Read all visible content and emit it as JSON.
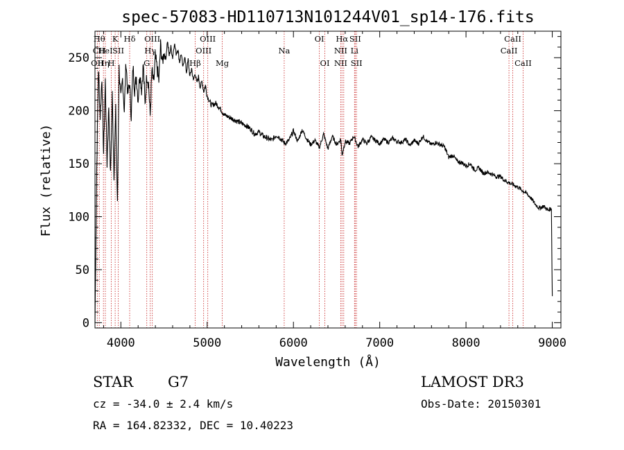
{
  "chart_data": {
    "type": "line",
    "title": "spec-57083-HD110713N101244V01_sp14-176.fits",
    "xlabel": "Wavelength (Å)",
    "ylabel": "Flux (relative)",
    "xlim": [
      3700,
      9100
    ],
    "ylim": [
      -5,
      275
    ],
    "xticks": [
      4000,
      5000,
      6000,
      7000,
      8000,
      9000
    ],
    "yticks": [
      0,
      50,
      100,
      150,
      200,
      250
    ],
    "series": [
      {
        "name": "flux",
        "x": [
          3700,
          3720,
          3740,
          3760,
          3780,
          3800,
          3820,
          3840,
          3860,
          3880,
          3900,
          3920,
          3940,
          3960,
          3980,
          4000,
          4020,
          4040,
          4060,
          4080,
          4100,
          4120,
          4140,
          4160,
          4180,
          4200,
          4220,
          4240,
          4260,
          4280,
          4300,
          4320,
          4340,
          4360,
          4380,
          4400,
          4420,
          4440,
          4460,
          4480,
          4500,
          4520,
          4540,
          4560,
          4580,
          4600,
          4620,
          4640,
          4660,
          4680,
          4700,
          4720,
          4740,
          4760,
          4780,
          4800,
          4820,
          4840,
          4860,
          4880,
          4900,
          4920,
          4940,
          4960,
          4980,
          5000,
          5050,
          5100,
          5150,
          5200,
          5250,
          5300,
          5350,
          5400,
          5450,
          5500,
          5550,
          5600,
          5650,
          5700,
          5750,
          5800,
          5850,
          5900,
          5950,
          6000,
          6050,
          6100,
          6150,
          6200,
          6250,
          6300,
          6350,
          6400,
          6450,
          6500,
          6550,
          6563,
          6600,
          6650,
          6700,
          6750,
          6800,
          6850,
          6900,
          6950,
          7000,
          7050,
          7100,
          7150,
          7200,
          7250,
          7300,
          7350,
          7400,
          7450,
          7500,
          7550,
          7600,
          7650,
          7700,
          7750,
          7800,
          7850,
          7900,
          7950,
          8000,
          8050,
          8100,
          8150,
          8200,
          8250,
          8300,
          8350,
          8400,
          8450,
          8500,
          8550,
          8600,
          8650,
          8700,
          8750,
          8800,
          8850,
          8900,
          8950,
          8990,
          9000
        ],
        "y": [
          0,
          145,
          240,
          195,
          232,
          160,
          228,
          150,
          205,
          138,
          215,
          140,
          200,
          110,
          240,
          210,
          230,
          200,
          247,
          215,
          226,
          195,
          242,
          220,
          232,
          210,
          236,
          220,
          244,
          205,
          234,
          226,
          195,
          238,
          225,
          250,
          240,
          228,
          262,
          245,
          255,
          248,
          266,
          252,
          260,
          250,
          264,
          254,
          258,
          246,
          254,
          240,
          252,
          236,
          248,
          232,
          240,
          228,
          236,
          226,
          232,
          222,
          228,
          218,
          224,
          214,
          205,
          207,
          202,
          196,
          194,
          192,
          190,
          188,
          186,
          183,
          178,
          180,
          176,
          174,
          172,
          177,
          174,
          169,
          172,
          181,
          171,
          182,
          174,
          168,
          172,
          165,
          178,
          164,
          176,
          168,
          173,
          158,
          171,
          169,
          176,
          166,
          173,
          169,
          175,
          172,
          169,
          173,
          170,
          174,
          171,
          170,
          173,
          167,
          172,
          169,
          176,
          171,
          168,
          170,
          168,
          166,
          156,
          158,
          152,
          151,
          148,
          150,
          144,
          146,
          141,
          142,
          140,
          138,
          138,
          134,
          132,
          130,
          128,
          125,
          122,
          118,
          112,
          108,
          110,
          106,
          108,
          25
        ],
        "color": "#000000"
      }
    ],
    "lines": [
      {
        "x": 3727,
        "labels": [
          {
            "text": "OII",
            "row": 2
          }
        ]
      },
      {
        "x": 3750,
        "labels": [
          {
            "text": "Hθ",
            "row": 0
          },
          {
            "text": "CH",
            "row": 1
          }
        ]
      },
      {
        "x": 3798,
        "labels": [
          {
            "text": "Hη",
            "row": 2
          }
        ]
      },
      {
        "x": 3820,
        "labels": [
          {
            "text": "HeI",
            "row": 1
          }
        ]
      },
      {
        "x": 3889,
        "labels": [
          {
            "text": "H",
            "row": 2
          }
        ]
      },
      {
        "x": 3934,
        "labels": [
          {
            "text": "K",
            "row": 0
          }
        ]
      },
      {
        "x": 3970,
        "labels": [
          {
            "text": "SII",
            "row": 1
          }
        ]
      },
      {
        "x": 4102,
        "labels": [
          {
            "text": "Hδ",
            "row": 0
          }
        ]
      },
      {
        "x": 4300,
        "labels": [
          {
            "text": "G",
            "row": 2
          }
        ]
      },
      {
        "x": 4340,
        "labels": [
          {
            "text": "Hγ",
            "row": 1
          }
        ]
      },
      {
        "x": 4364,
        "labels": [
          {
            "text": "OIII",
            "row": 0
          }
        ]
      },
      {
        "x": 4861,
        "labels": [
          {
            "text": "Hβ",
            "row": 2
          }
        ]
      },
      {
        "x": 4959,
        "labels": [
          {
            "text": "OIII",
            "row": 1
          }
        ]
      },
      {
        "x": 5007,
        "labels": [
          {
            "text": "OIII",
            "row": 0
          }
        ]
      },
      {
        "x": 5175,
        "labels": [
          {
            "text": "Mg",
            "row": 2
          }
        ]
      },
      {
        "x": 5893,
        "labels": [
          {
            "text": "Na",
            "row": 1
          }
        ]
      },
      {
        "x": 6300,
        "labels": [
          {
            "text": "OI",
            "row": 0
          }
        ]
      },
      {
        "x": 6364,
        "labels": [
          {
            "text": "OI",
            "row": 2
          }
        ]
      },
      {
        "x": 6548,
        "labels": [
          {
            "text": "NII",
            "row": 1
          },
          {
            "text": "NII",
            "row": 2
          }
        ]
      },
      {
        "x": 6563,
        "labels": [
          {
            "text": "Hα",
            "row": 0
          }
        ]
      },
      {
        "x": 6583,
        "labels": []
      },
      {
        "x": 6708,
        "labels": [
          {
            "text": "Li",
            "row": 1
          }
        ]
      },
      {
        "x": 6716,
        "labels": [
          {
            "text": "SII",
            "row": 0
          }
        ]
      },
      {
        "x": 6731,
        "labels": [
          {
            "text": "SII",
            "row": 2
          }
        ]
      },
      {
        "x": 8498,
        "labels": [
          {
            "text": "CaII",
            "row": 1
          }
        ]
      },
      {
        "x": 8542,
        "labels": [
          {
            "text": "CaII",
            "row": 0
          }
        ]
      },
      {
        "x": 8662,
        "labels": [
          {
            "text": "CaII",
            "row": 2
          }
        ]
      }
    ],
    "line_color": "#cc3333",
    "grid": false,
    "legend": "none"
  },
  "info": {
    "object_class": "STAR",
    "subclass": "G7",
    "survey": "LAMOST DR3",
    "cz": "cz = -34.0 ± 2.4 km/s",
    "obs_date": "Obs-Date: 20150301",
    "coords": "RA = 164.82332, DEC =  10.40223"
  }
}
